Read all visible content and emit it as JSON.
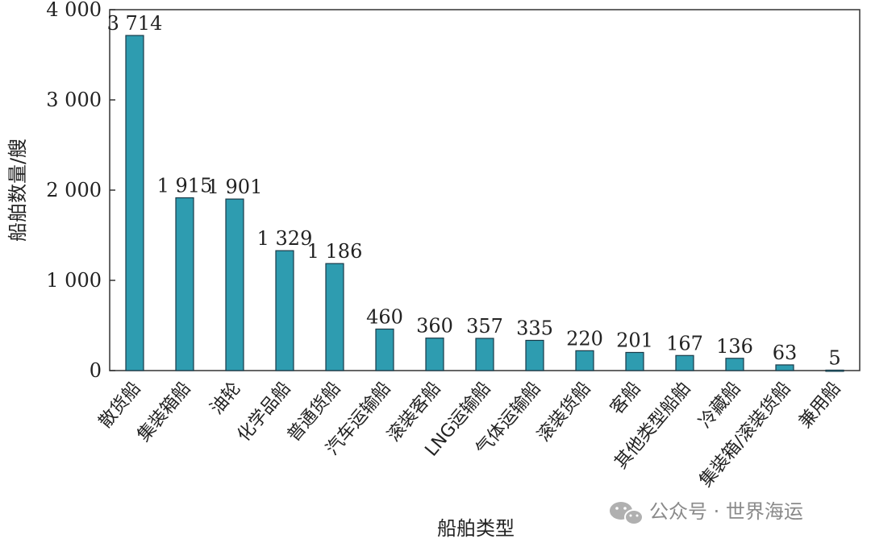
{
  "chart_data": {
    "type": "bar",
    "categories": [
      "散货船",
      "集装箱船",
      "油轮",
      "化学品船",
      "普通货船",
      "汽车运输船",
      "滚装客船",
      "LNG运输船",
      "气体运输船",
      "滚装货船",
      "客船",
      "其他类型船舶",
      "冷藏船",
      "集装箱/滚装货船",
      "兼用船"
    ],
    "values": [
      3714,
      1915,
      1901,
      1329,
      1186,
      460,
      360,
      357,
      335,
      220,
      201,
      167,
      136,
      63,
      5
    ],
    "value_labels": [
      "3 714",
      "1 915",
      "1 901",
      "1 329",
      "1 186",
      "460",
      "360",
      "357",
      "335",
      "220",
      "201",
      "167",
      "136",
      "63",
      "5"
    ],
    "xlabel": "船舶类型",
    "ylabel": "船舶数量/艘",
    "ylim": [
      0,
      4000
    ],
    "yticks": [
      0,
      1000,
      2000,
      3000,
      4000
    ],
    "ytick_labels": [
      "0",
      "1 000",
      "2 000",
      "3 000",
      "4 000"
    ],
    "grid": false,
    "bar_color": "#2e9cb0",
    "bar_edge_color": "#1a3a48"
  },
  "watermark": {
    "text": "公众号 · 世界海运",
    "icon": "wechat-icon"
  }
}
